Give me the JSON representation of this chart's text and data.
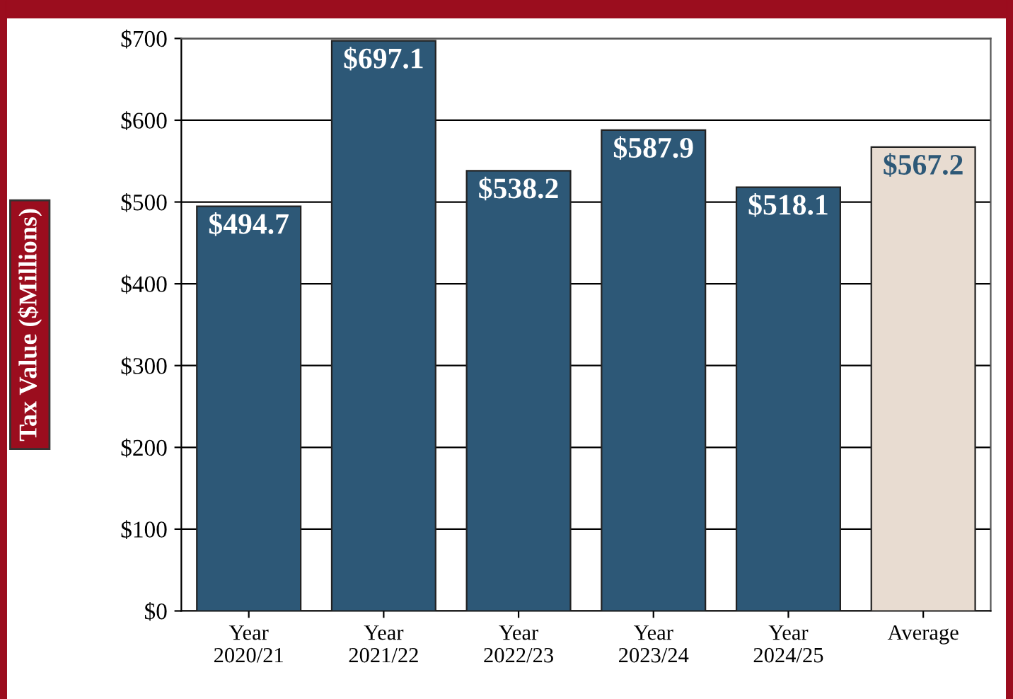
{
  "chart_data": {
    "type": "bar",
    "ylabel": "Tax Value ($Millions)",
    "categories": [
      "Year\n2020/21",
      "Year\n2021/22",
      "Year\n2022/23",
      "Year\n2023/24",
      "Year\n2024/25",
      "Average"
    ],
    "values": [
      494.7,
      697.1,
      538.2,
      587.9,
      518.1,
      567.2
    ],
    "colors": [
      "#2d5877",
      "#2d5877",
      "#2d5877",
      "#2d5877",
      "#2d5877",
      "#e8dcd1"
    ],
    "value_labels": [
      "$494.7",
      "$697.1",
      "$538.2",
      "$587.9",
      "$518.1",
      "$567.2"
    ],
    "ylim": [
      0,
      700
    ],
    "yticks": [
      {
        "value": 0,
        "label": "$0"
      },
      {
        "value": 100,
        "label": "$100"
      },
      {
        "value": 200,
        "label": "$200"
      },
      {
        "value": 300,
        "label": "$300"
      },
      {
        "value": 400,
        "label": "$400"
      },
      {
        "value": 500,
        "label": "$500"
      },
      {
        "value": 600,
        "label": "$600"
      },
      {
        "value": 700,
        "label": "$700"
      }
    ],
    "grid": "y",
    "legend": false
  }
}
